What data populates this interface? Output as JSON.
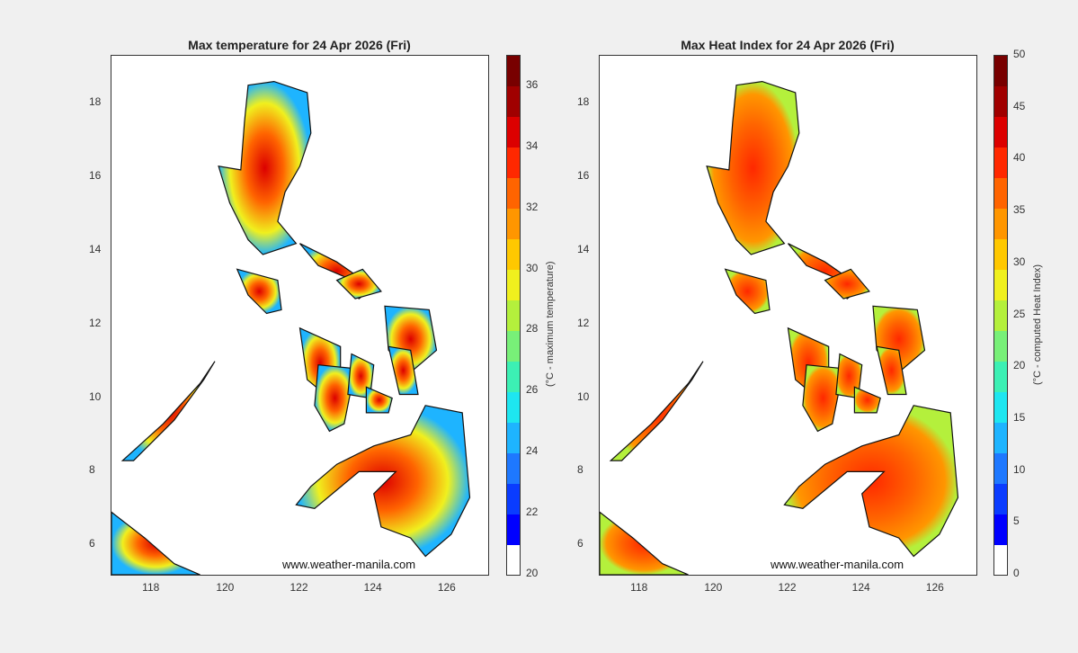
{
  "panels": [
    {
      "title": "Max temperature for 24 Apr 2026 (Fri)",
      "watermark": "www.weather-manila.com",
      "colorbar": {
        "label": "(°C - maximum temperature)",
        "min": 20,
        "max": 37,
        "ticks": [
          "20",
          "22",
          "24",
          "26",
          "28",
          "30",
          "32",
          "34",
          "36"
        ],
        "tick_values": [
          20,
          22,
          24,
          26,
          28,
          30,
          32,
          34,
          36
        ]
      }
    },
    {
      "title": "Max Heat Index for 24 Apr 2026 (Fri)",
      "watermark": "www.weather-manila.com",
      "colorbar": {
        "label": "(°C - computed Heat Index)",
        "min": 0,
        "max": 50,
        "ticks": [
          "0",
          "5",
          "10",
          "15",
          "20",
          "25",
          "30",
          "35",
          "40",
          "45",
          "50"
        ],
        "tick_values": [
          0,
          5,
          10,
          15,
          20,
          25,
          30,
          35,
          40,
          45,
          50
        ]
      }
    }
  ],
  "map_extent": {
    "lon": [
      116.9,
      127.1
    ],
    "lat": [
      5.2,
      19.3
    ]
  },
  "x_ticks": [
    "118",
    "120",
    "122",
    "124",
    "126"
  ],
  "x_tick_values": [
    118,
    120,
    122,
    124,
    126
  ],
  "y_ticks": [
    "6",
    "8",
    "10",
    "12",
    "14",
    "16",
    "18"
  ],
  "y_tick_values": [
    6,
    8,
    10,
    12,
    14,
    16,
    18
  ],
  "colormap": [
    "#ffffff",
    "#0000ff",
    "#0a3cff",
    "#1e78ff",
    "#1eb4ff",
    "#1ee6f0",
    "#3cf0b4",
    "#78f078",
    "#b4f03c",
    "#f0f01e",
    "#ffc800",
    "#ff9600",
    "#ff6400",
    "#ff2800",
    "#dc0000",
    "#a00000",
    "#780000"
  ]
}
